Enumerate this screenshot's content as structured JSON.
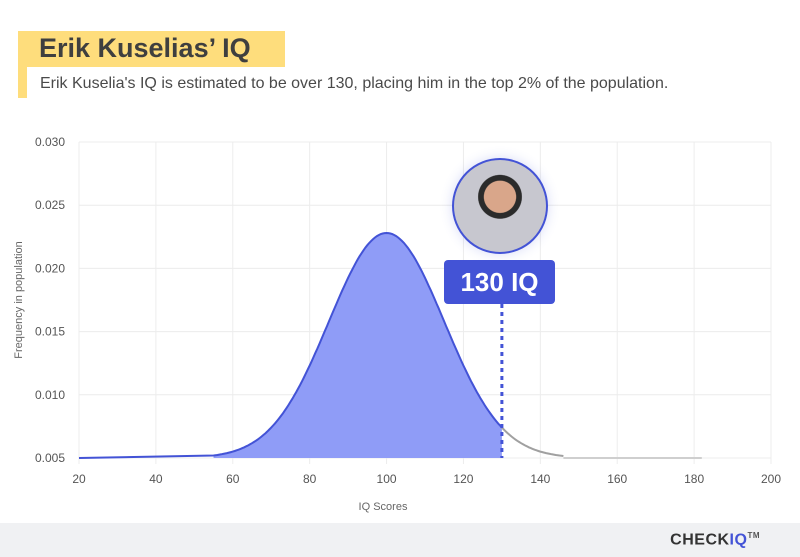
{
  "header": {
    "title": "Erik Kuselias’ IQ",
    "subtitle": "Erik Kuselia's IQ is estimated to be over 130, placing him in the top 2% of the population."
  },
  "badge": {
    "label": "130 IQ",
    "value": 130
  },
  "footer": {
    "logo_main": "CHECK",
    "logo_accent": "IQ",
    "logo_tm": "TM"
  },
  "colors": {
    "accent": "#4353d6",
    "fill": "#8f9cf7",
    "gray": "#a0a0a0",
    "highlight": "#fedd7c"
  },
  "chart_data": {
    "type": "area",
    "title": "Erik Kuselias’ IQ",
    "xlabel": "IQ Scores",
    "ylabel": "Frequency in population",
    "xlim": [
      20,
      200
    ],
    "ylim": [
      0.005,
      0.03
    ],
    "xticks": [
      20,
      40,
      60,
      80,
      100,
      120,
      140,
      160,
      180,
      200
    ],
    "yticks": [
      "0.005",
      "0.010",
      "0.015",
      "0.020",
      "0.025",
      "0.030"
    ],
    "distribution": {
      "mean": 100,
      "sd": 15,
      "peak": 0.0228,
      "baseline": 0.005
    },
    "highlight_upto": 130,
    "marker": {
      "x": 130,
      "label": "130 IQ"
    },
    "grid": true
  }
}
